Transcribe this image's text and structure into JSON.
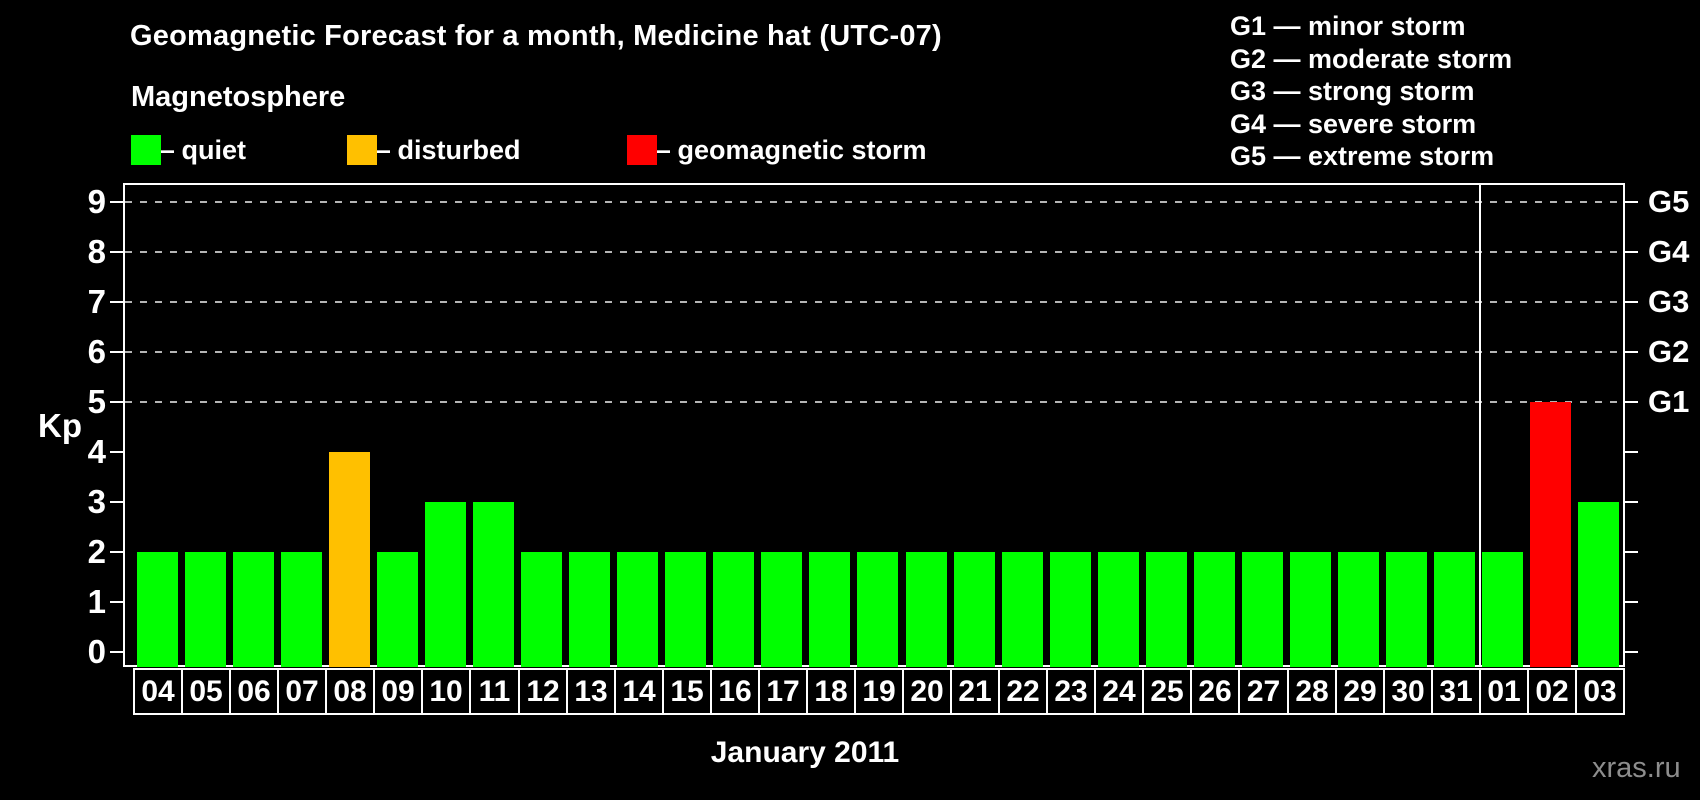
{
  "title": "Geomagnetic Forecast for a month, Medicine hat (UTC-07)",
  "legend": {
    "heading": "Magnetosphere",
    "items": [
      {
        "status": "quiet",
        "label": "— quiet",
        "color": "#00ff00"
      },
      {
        "status": "disturbed",
        "label": "— disturbed",
        "color": "#ffc000"
      },
      {
        "status": "storm",
        "label": "— geomagnetic storm",
        "color": "#ff0000"
      }
    ]
  },
  "storm_scale_legend": [
    "G1 — minor storm",
    "G2 — moderate storm",
    "G3 — strong storm",
    "G4 — severe storm",
    "G5 — extreme storm"
  ],
  "watermark": "xras.ru",
  "chart_data": {
    "type": "bar",
    "title": "Geomagnetic Forecast for a month, Medicine hat (UTC-07)",
    "xlabel": "January 2011",
    "ylabel": "Kp",
    "ylim": [
      0,
      9.4
    ],
    "yticks": [
      0,
      1,
      2,
      3,
      4,
      5,
      6,
      7,
      8,
      9
    ],
    "gridlines_at": [
      5,
      6,
      7,
      8,
      9
    ],
    "grid_style": "dashed",
    "legend_position": "top-left",
    "right_axis": [
      {
        "kp": 5,
        "label": "G1"
      },
      {
        "kp": 6,
        "label": "G2"
      },
      {
        "kp": 7,
        "label": "G3"
      },
      {
        "kp": 8,
        "label": "G4"
      },
      {
        "kp": 9,
        "label": "G5"
      }
    ],
    "month_separator_before_day": "01",
    "status_colors": {
      "quiet": "#00ff00",
      "disturbed": "#ffc000",
      "storm": "#ff0000"
    },
    "bars": [
      {
        "day": "04",
        "kp": 2,
        "status": "quiet"
      },
      {
        "day": "05",
        "kp": 2,
        "status": "quiet"
      },
      {
        "day": "06",
        "kp": 2,
        "status": "quiet"
      },
      {
        "day": "07",
        "kp": 2,
        "status": "quiet"
      },
      {
        "day": "08",
        "kp": 4,
        "status": "disturbed"
      },
      {
        "day": "09",
        "kp": 2,
        "status": "quiet"
      },
      {
        "day": "10",
        "kp": 3,
        "status": "quiet"
      },
      {
        "day": "11",
        "kp": 3,
        "status": "quiet"
      },
      {
        "day": "12",
        "kp": 2,
        "status": "quiet"
      },
      {
        "day": "13",
        "kp": 2,
        "status": "quiet"
      },
      {
        "day": "14",
        "kp": 2,
        "status": "quiet"
      },
      {
        "day": "15",
        "kp": 2,
        "status": "quiet"
      },
      {
        "day": "16",
        "kp": 2,
        "status": "quiet"
      },
      {
        "day": "17",
        "kp": 2,
        "status": "quiet"
      },
      {
        "day": "18",
        "kp": 2,
        "status": "quiet"
      },
      {
        "day": "19",
        "kp": 2,
        "status": "quiet"
      },
      {
        "day": "20",
        "kp": 2,
        "status": "quiet"
      },
      {
        "day": "21",
        "kp": 2,
        "status": "quiet"
      },
      {
        "day": "22",
        "kp": 2,
        "status": "quiet"
      },
      {
        "day": "23",
        "kp": 2,
        "status": "quiet"
      },
      {
        "day": "24",
        "kp": 2,
        "status": "quiet"
      },
      {
        "day": "25",
        "kp": 2,
        "status": "quiet"
      },
      {
        "day": "26",
        "kp": 2,
        "status": "quiet"
      },
      {
        "day": "27",
        "kp": 2,
        "status": "quiet"
      },
      {
        "day": "28",
        "kp": 2,
        "status": "quiet"
      },
      {
        "day": "29",
        "kp": 2,
        "status": "quiet"
      },
      {
        "day": "30",
        "kp": 2,
        "status": "quiet"
      },
      {
        "day": "31",
        "kp": 2,
        "status": "quiet"
      },
      {
        "day": "01",
        "kp": 2,
        "status": "quiet"
      },
      {
        "day": "02",
        "kp": 5,
        "status": "storm"
      },
      {
        "day": "03",
        "kp": 3,
        "status": "quiet"
      }
    ]
  }
}
